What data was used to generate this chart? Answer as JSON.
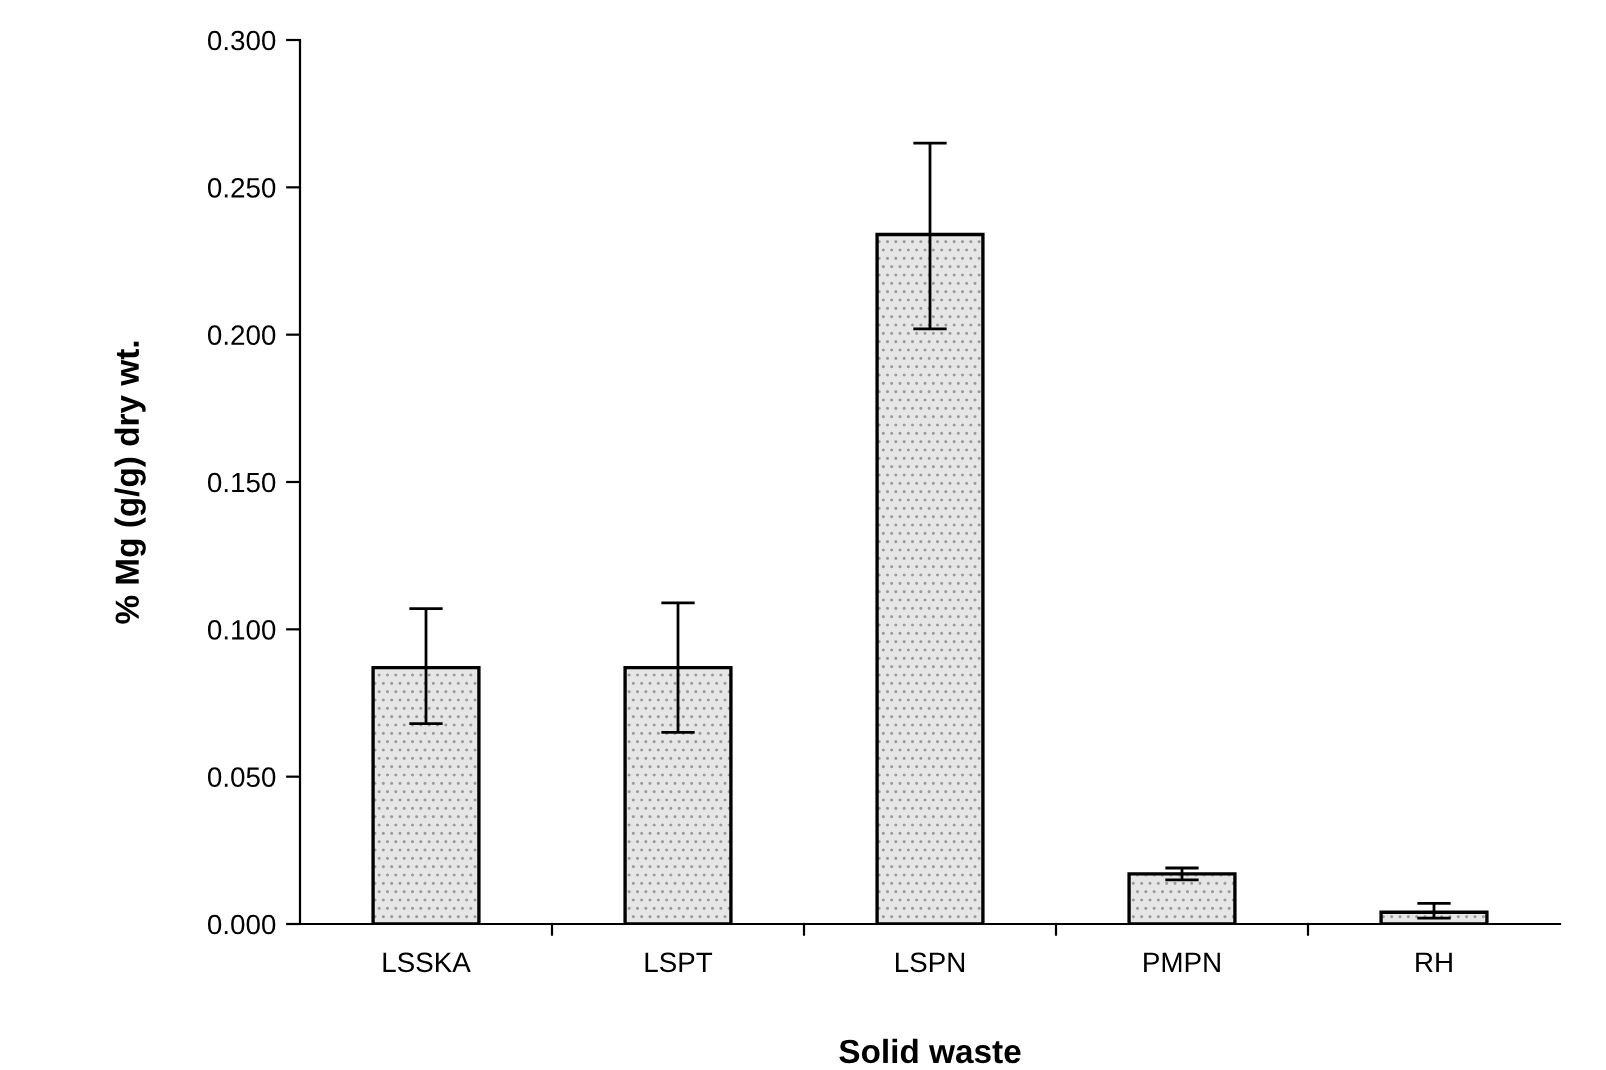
{
  "chart_data": {
    "type": "bar",
    "xlabel": "Solid waste",
    "ylabel": "% Mg (g/g) dry wt.",
    "categories": [
      "LSSKA",
      "LSPT",
      "LSPN",
      "PMPN",
      "RH"
    ],
    "values": [
      0.087,
      0.087,
      0.234,
      0.017,
      0.004
    ],
    "errors": [
      [
        0.068,
        0.107
      ],
      [
        0.065,
        0.109
      ],
      [
        0.202,
        0.265
      ],
      [
        0.015,
        0.019
      ],
      [
        0.002,
        0.007
      ]
    ],
    "color": "#e6e6e6",
    "ylim": [
      0,
      0.3
    ],
    "yticks": [
      {
        "value": 0,
        "label": "0.000"
      },
      {
        "value": 0.05,
        "label": "0.050"
      },
      {
        "value": 0.1,
        "label": "0.100"
      },
      {
        "value": 0.15,
        "label": "0.150"
      },
      {
        "value": 0.2,
        "label": "0.200"
      },
      {
        "value": 0.25,
        "label": "0.250"
      },
      {
        "value": 0.3,
        "label": "0.300"
      }
    ],
    "grid": false,
    "legend": false
  }
}
